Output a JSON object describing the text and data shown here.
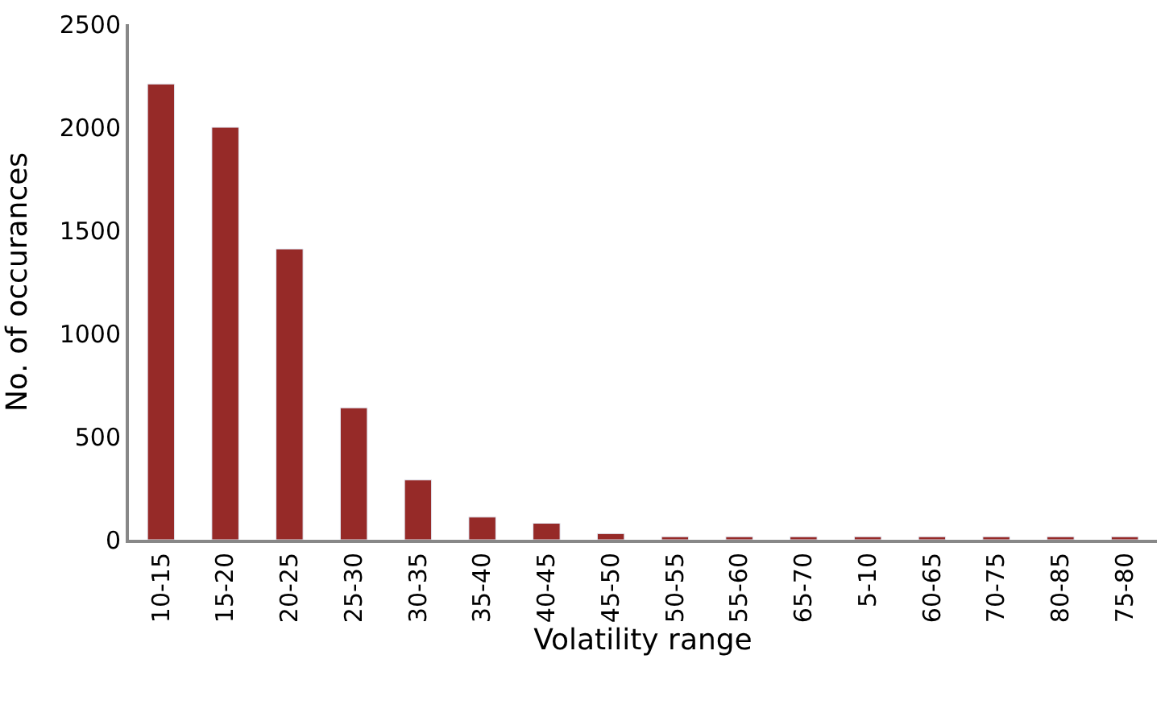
{
  "chart_data": {
    "type": "bar",
    "xlabel": "Volatility range",
    "ylabel": "No. of occurances",
    "categories": [
      "10-15",
      "15-20",
      "20-25",
      "25-30",
      "30-35",
      "35-40",
      "40-45",
      "45-50",
      "50-55",
      "55-60",
      "65-70",
      "5-10",
      "60-65",
      "70-75",
      "80-85",
      "75-80"
    ],
    "values": [
      2210,
      2000,
      1410,
      640,
      290,
      110,
      80,
      30,
      15,
      15,
      15,
      15,
      15,
      15,
      15,
      15
    ],
    "color": "#962a28",
    "ylim": [
      0,
      2500
    ],
    "yticks": [
      0,
      500,
      1000,
      1500,
      2000,
      2500
    ]
  }
}
